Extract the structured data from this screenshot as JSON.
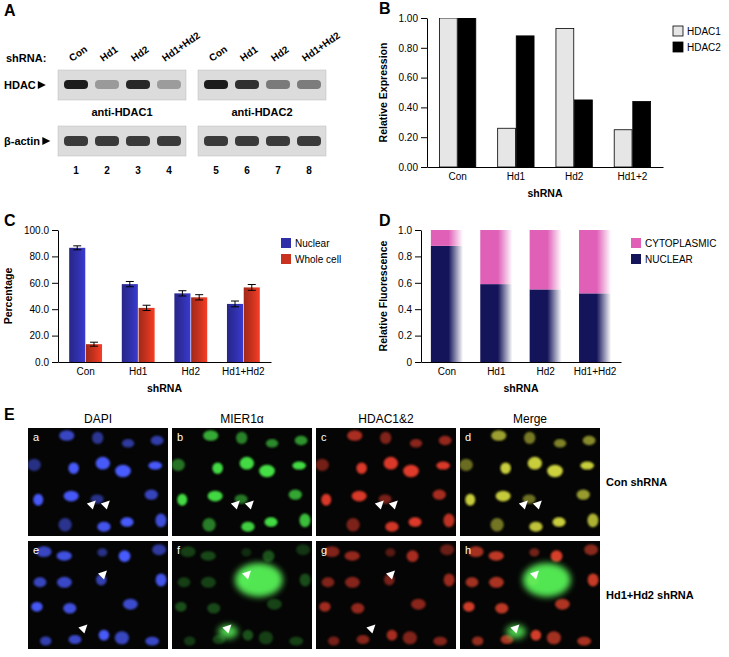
{
  "chart_data": [
    {
      "panel_label": "B",
      "type": "bar",
      "x_label": "shRNA",
      "y_label": "Relative Expression",
      "categories": [
        "Con",
        "Hd1",
        "Hd2",
        "Hd1+2"
      ],
      "series": [
        {
          "name": "HDAC1",
          "color": "#e6e6e6",
          "values": [
            1.0,
            0.26,
            0.93,
            0.25
          ]
        },
        {
          "name": "HDAC2",
          "color": "#000000",
          "values": [
            1.0,
            0.88,
            0.45,
            0.44
          ]
        }
      ],
      "ylim": [
        0,
        1
      ],
      "yticks": [
        {
          "value": 0,
          "label": "0.00"
        },
        {
          "value": 0.2,
          "label": "0.20"
        },
        {
          "value": 0.4,
          "label": "0.40"
        },
        {
          "value": 0.6,
          "label": "0.60"
        },
        {
          "value": 0.8,
          "label": "0.80"
        },
        {
          "value": 1,
          "label": "1.00"
        }
      ],
      "legend": "right",
      "grid": false
    },
    {
      "panel_label": "C",
      "type": "bar",
      "x_label": "shRNA",
      "y_label": "Percentage",
      "categories": [
        "Con",
        "Hd1",
        "Hd2",
        "Hd1+Hd2"
      ],
      "series": [
        {
          "name": "Nuclear",
          "color": "#2f2fa8",
          "values": [
            86.5,
            59.0,
            52.0,
            44.0
          ],
          "errors": [
            1.5,
            2.0,
            2.0,
            2.2
          ]
        },
        {
          "name": "Whole cell",
          "color": "#c8321e",
          "values": [
            13.5,
            41.0,
            49.0,
            56.5
          ],
          "errors": [
            1.5,
            2.0,
            2.0,
            2.2
          ]
        }
      ],
      "ylim": [
        0,
        100
      ],
      "yticks": [
        {
          "value": 0,
          "label": "0.0"
        },
        {
          "value": 20,
          "label": "20.0"
        },
        {
          "value": 40,
          "label": "40.0"
        },
        {
          "value": 60,
          "label": "60.0"
        },
        {
          "value": 80,
          "label": "80.0"
        },
        {
          "value": 100,
          "label": "100.0"
        }
      ],
      "legend": "right",
      "grid": false
    },
    {
      "panel_label": "D",
      "type": "bar",
      "x_label": "shRNA",
      "y_label": "Relative Fluorescence",
      "categories": [
        "Con",
        "Hd1",
        "Hd2",
        "Hd1+Hd2"
      ],
      "series": [
        {
          "name": "NUCLEAR",
          "color": "#14145a",
          "values": [
            0.88,
            0.59,
            0.55,
            0.52
          ]
        },
        {
          "name": "CYTOPLASMIC",
          "color": "#e060b8",
          "values": [
            0.12,
            0.41,
            0.45,
            0.48
          ]
        }
      ],
      "ylim": [
        0,
        1
      ],
      "yticks": [
        0,
        0.2,
        0.4,
        0.6,
        0.8,
        {
          "value": 1,
          "label": "1.0"
        }
      ],
      "stacked": true,
      "legend": "right",
      "grid": false
    }
  ],
  "panels": {
    "A": {
      "panel_label": "A",
      "lane_header": "shRNA:",
      "lanes": [
        "Con",
        "Hd1",
        "Hd2",
        "Hd1+Hd2",
        "Con",
        "Hd1",
        "Hd2",
        "Hd1+Hd2"
      ],
      "lane_numbers": [
        1,
        2,
        3,
        4,
        5,
        6,
        7,
        8
      ],
      "band_label": "HDAC",
      "blots": [
        "anti-HDAC1",
        "anti-HDAC2"
      ],
      "loading_control": "β-actin"
    },
    "E": {
      "panel_label": "E",
      "columns": [
        "DAPI",
        "MIER1α",
        "HDAC1&2",
        "Merge"
      ],
      "subpanels": [
        "a",
        "b",
        "c",
        "d",
        "e",
        "f",
        "g",
        "h"
      ],
      "rows": [
        "Con shRNA",
        "Hd1+Hd2 shRNA"
      ]
    }
  }
}
